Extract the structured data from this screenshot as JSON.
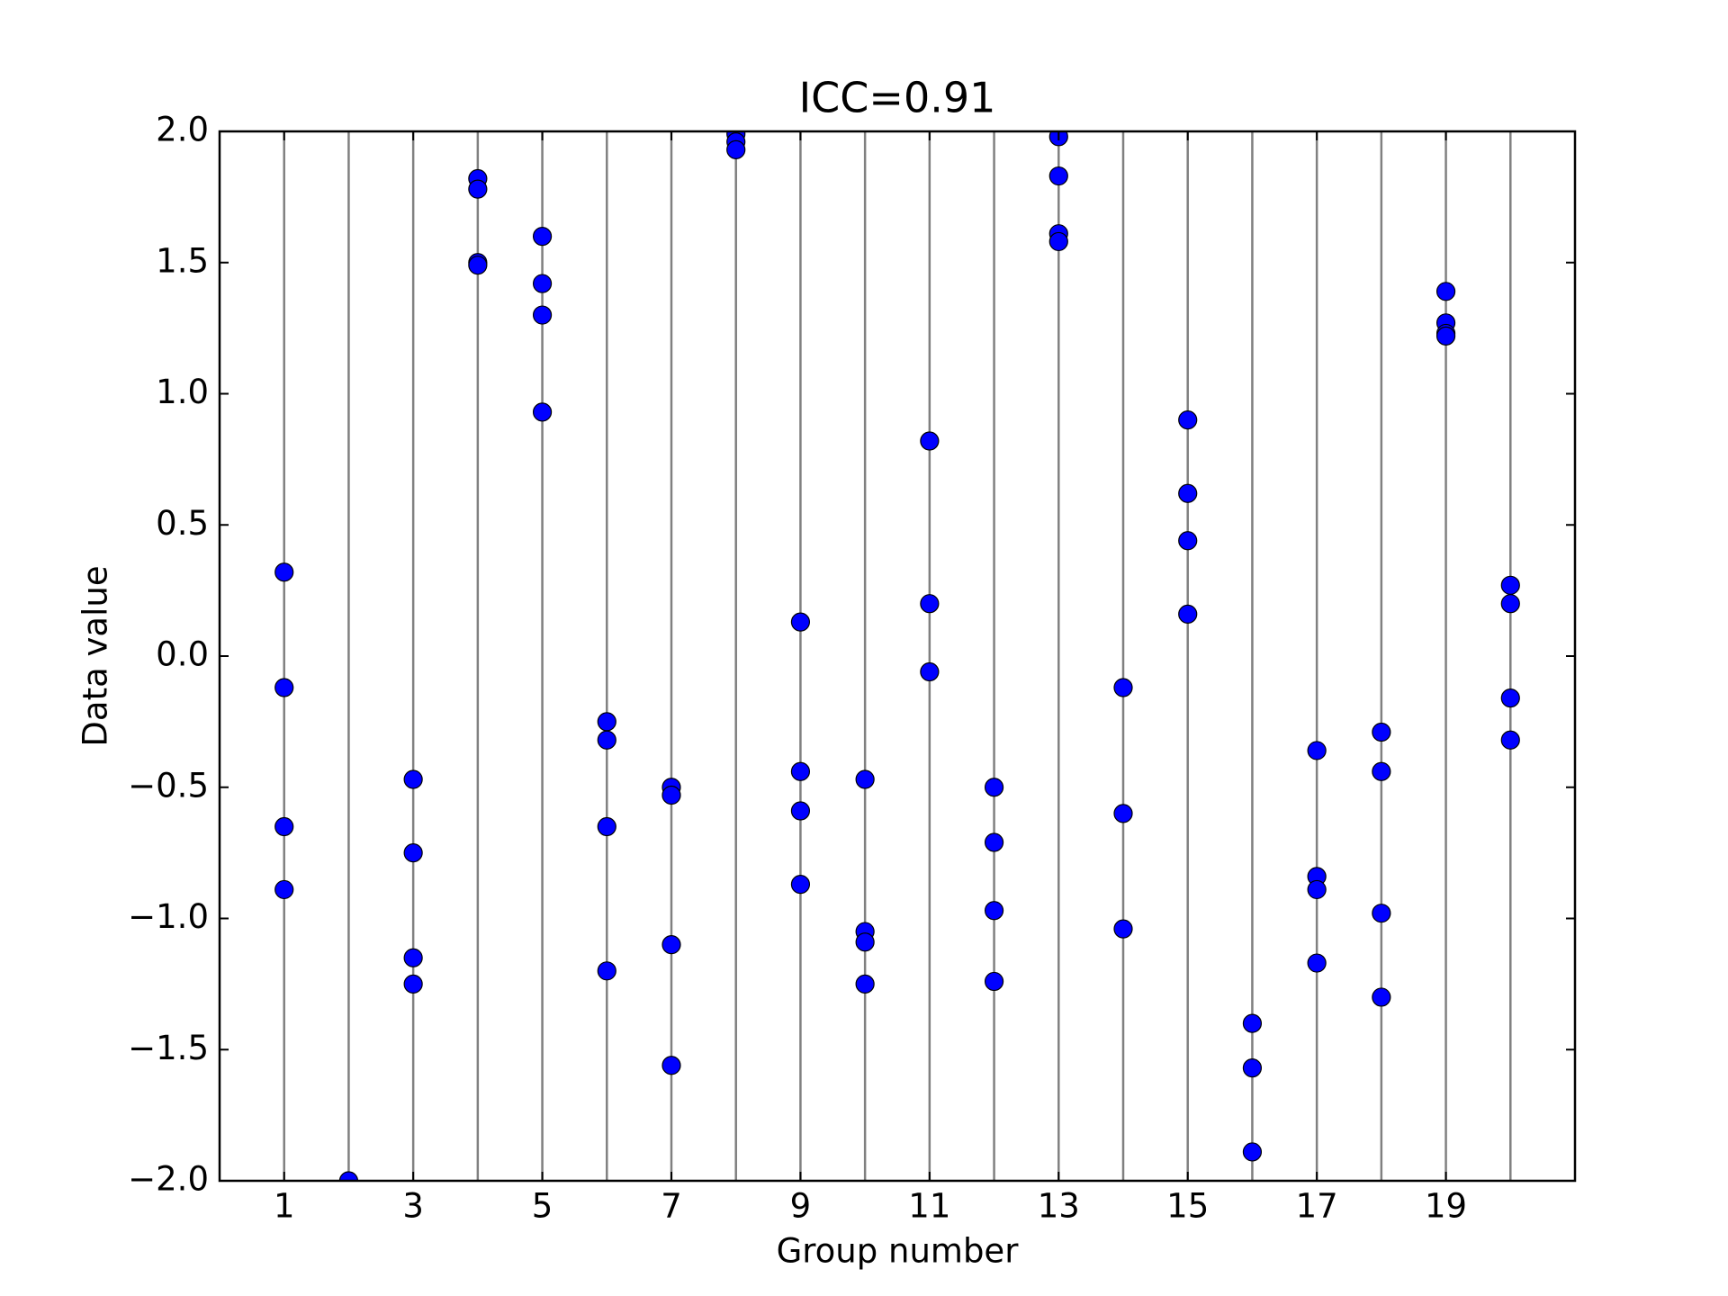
{
  "chart_data": {
    "type": "scatter",
    "title": "ICC=0.91",
    "x_label": "Group number",
    "y_label": "Data value",
    "x": [
      1,
      1,
      1,
      1,
      2,
      3,
      3,
      3,
      3,
      4,
      4,
      4,
      4,
      5,
      5,
      5,
      5,
      6,
      6,
      6,
      6,
      7,
      7,
      7,
      7,
      8,
      8,
      8,
      9,
      9,
      9,
      9,
      10,
      10,
      10,
      10,
      11,
      11,
      11,
      12,
      12,
      12,
      12,
      13,
      13,
      13,
      13,
      14,
      14,
      14,
      15,
      15,
      15,
      15,
      16,
      16,
      16,
      17,
      17,
      17,
      17,
      18,
      18,
      18,
      18,
      19,
      19,
      19,
      19,
      20,
      20,
      20,
      20
    ],
    "y": [
      0.32,
      -0.12,
      -0.65,
      -0.89,
      -2.0,
      -0.47,
      -0.75,
      -1.15,
      -1.25,
      1.82,
      1.78,
      1.5,
      1.49,
      1.6,
      1.42,
      1.3,
      0.93,
      -0.25,
      -0.32,
      -0.65,
      -1.2,
      -0.5,
      -0.53,
      -1.1,
      -1.56,
      1.99,
      1.96,
      1.93,
      0.13,
      -0.44,
      -0.59,
      -0.87,
      -0.47,
      -1.05,
      -1.09,
      -1.25,
      0.82,
      0.2,
      -0.06,
      -0.5,
      -0.71,
      -0.97,
      -1.24,
      1.98,
      1.83,
      1.61,
      1.58,
      -0.12,
      -0.6,
      -1.04,
      0.9,
      0.62,
      0.44,
      0.16,
      -1.4,
      -1.57,
      -1.89,
      -0.36,
      -0.84,
      -0.89,
      -1.17,
      -0.29,
      -0.44,
      -0.98,
      -1.3,
      1.39,
      1.27,
      1.23,
      1.22,
      0.27,
      0.2,
      -0.16,
      -0.32
    ],
    "color": "#0000ff",
    "group_line_color": "#808080",
    "xlim": [
      0,
      21
    ],
    "xticks": [
      1,
      3,
      5,
      7,
      9,
      11,
      13,
      15,
      17,
      19
    ],
    "ylim": [
      -2,
      2
    ],
    "yticks": [
      {
        "value": -2,
        "label": "−2.0"
      },
      {
        "value": -1.5,
        "label": "−1.5"
      },
      {
        "value": -1,
        "label": "−1.0"
      },
      {
        "value": -0.5,
        "label": "−0.5"
      },
      {
        "value": 0,
        "label": "0.0"
      },
      0.5,
      {
        "value": 1,
        "label": "1.0"
      },
      1.5,
      {
        "value": 2,
        "label": "2.0"
      }
    ]
  }
}
